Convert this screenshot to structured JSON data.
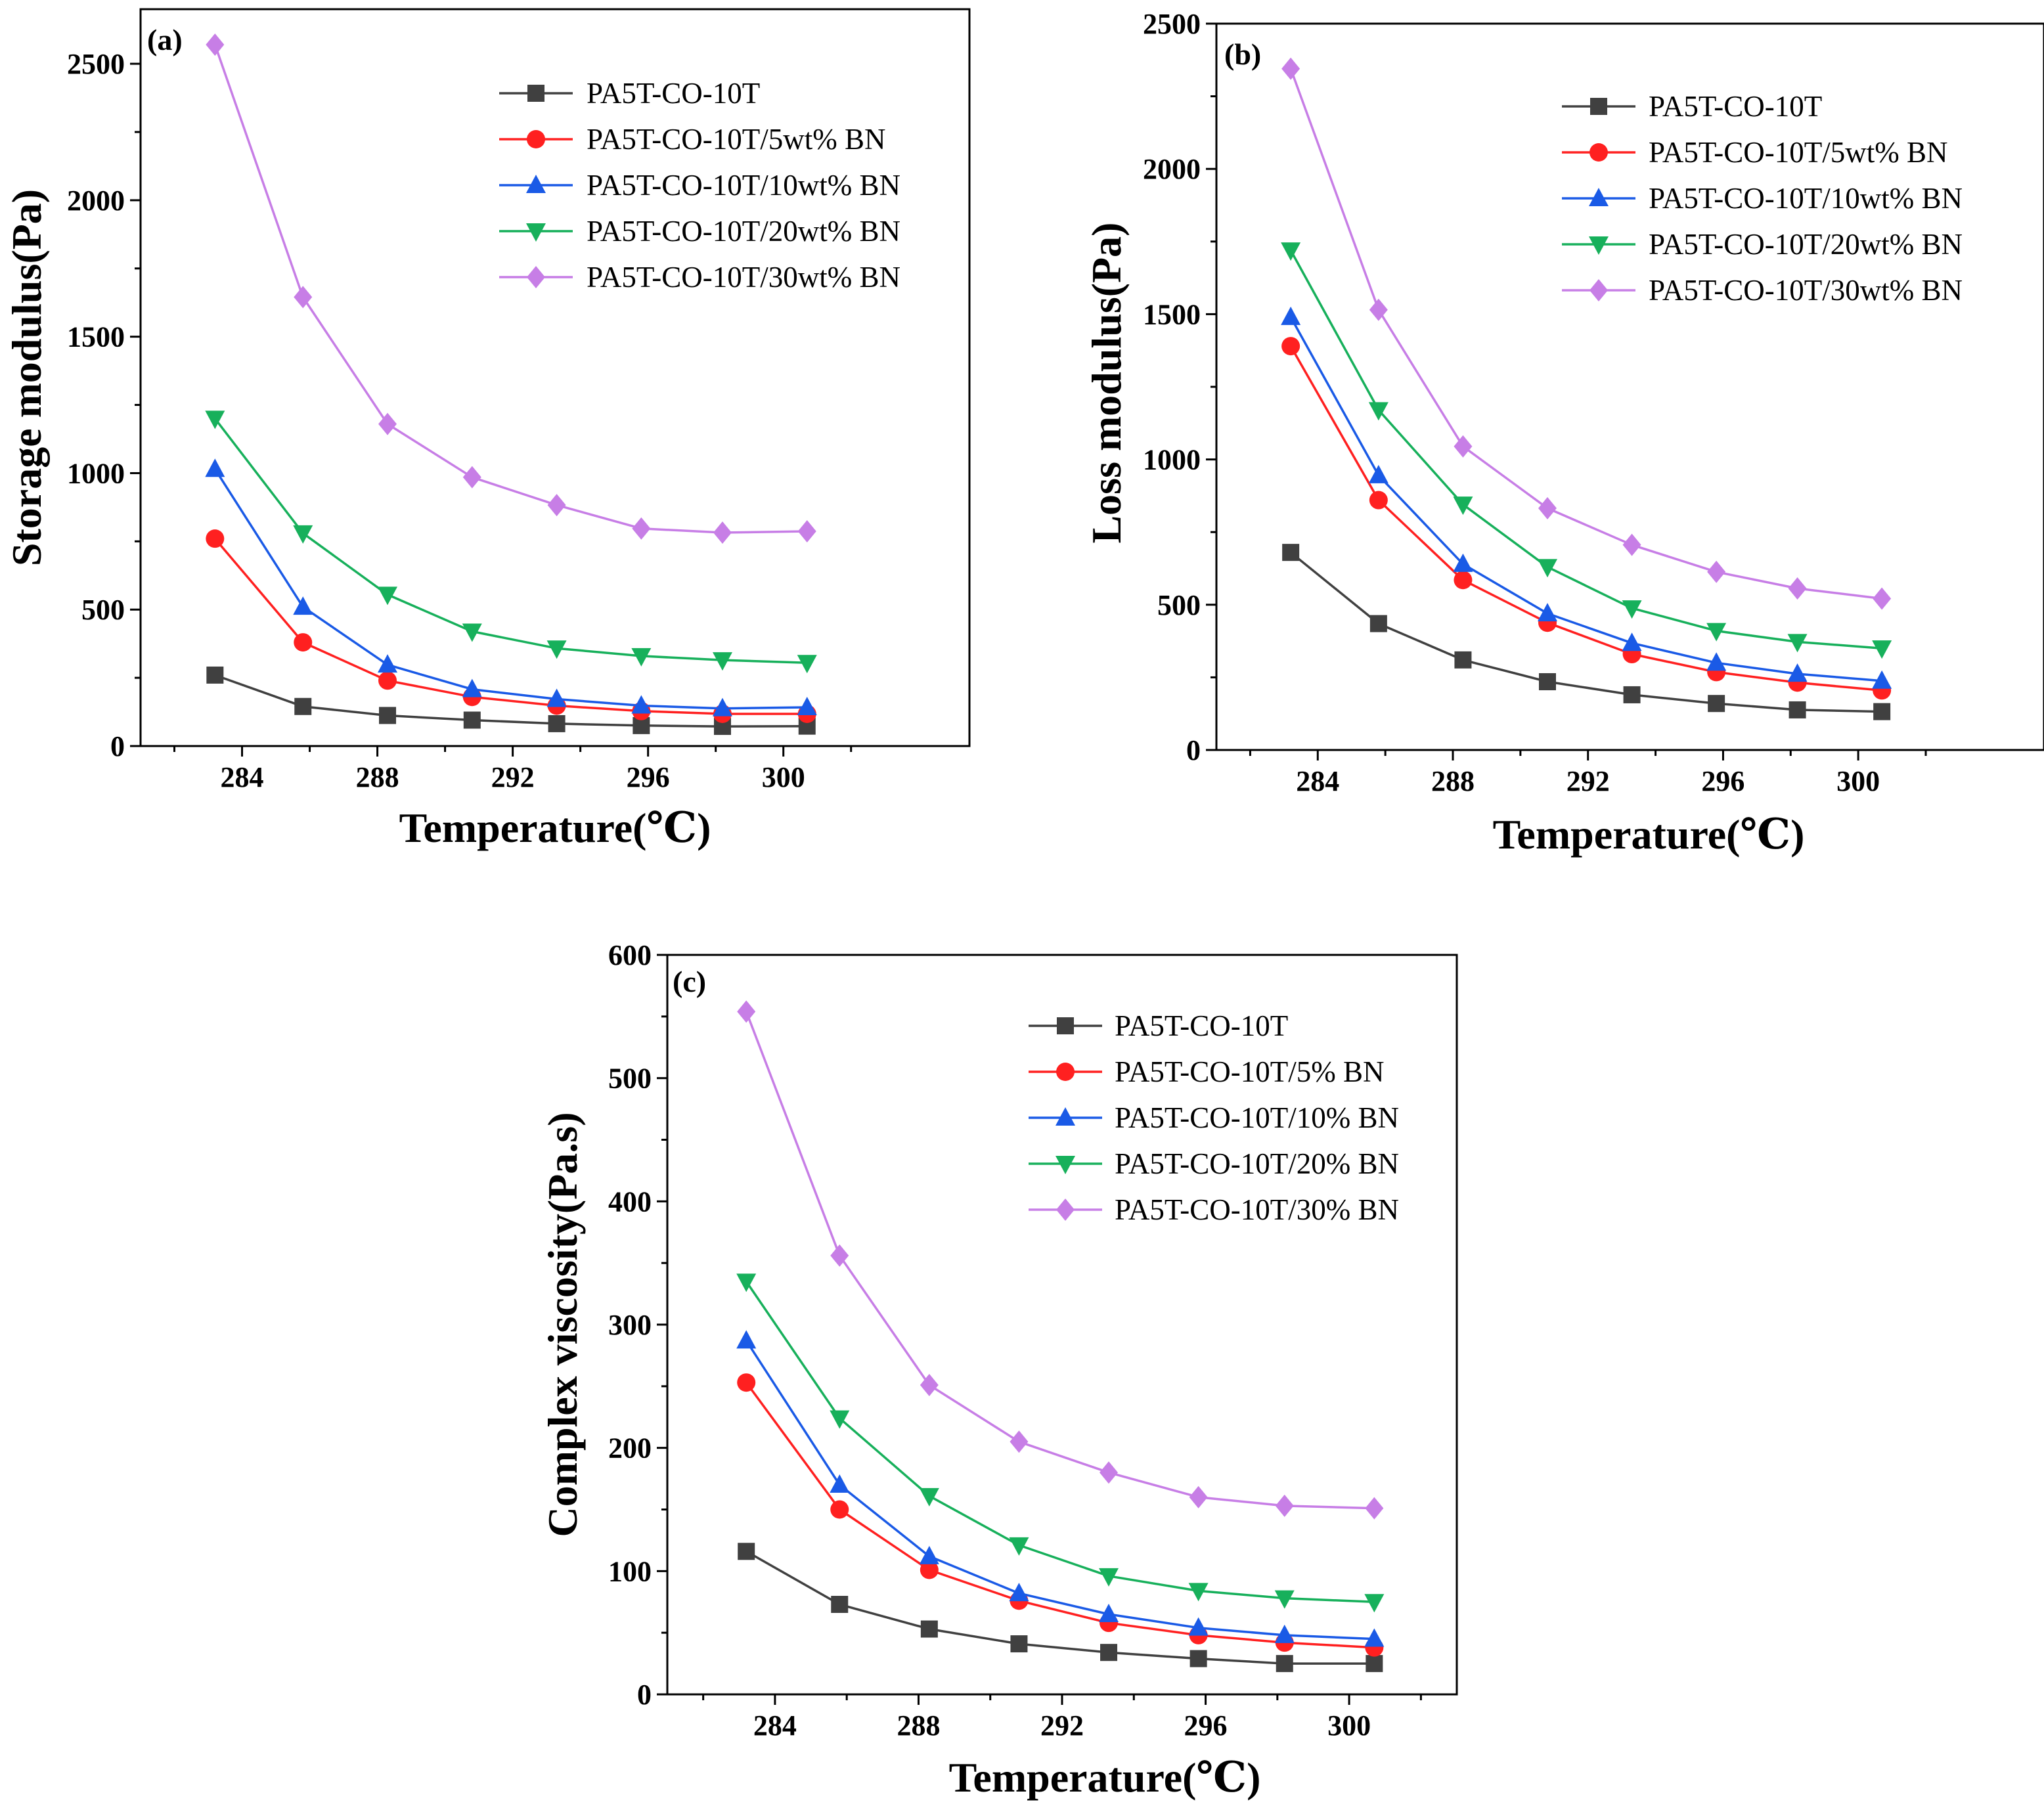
{
  "figure": {
    "colors": {
      "axis": "#000000",
      "series": [
        "#404040",
        "#ff2020",
        "#1a5ae6",
        "#17b05b",
        "#c77ee6"
      ]
    },
    "markers": [
      "square",
      "circle",
      "triangle-up",
      "triangle-down",
      "diamond"
    ]
  },
  "chart_data": [
    {
      "type": "line",
      "panel_label": "(a)",
      "title": "",
      "xlabel": "Temperature(℃)",
      "ylabel": "Storage modulus(Pa)",
      "xlim": [
        281,
        305.5
      ],
      "ylim": [
        0,
        2700
      ],
      "xticks": [
        284,
        288,
        292,
        296,
        300
      ],
      "yticks": [
        0,
        500,
        1000,
        1500,
        2000,
        2500
      ],
      "legend_position": "top-right",
      "x": [
        283.2,
        285.8,
        288.3,
        290.8,
        293.3,
        295.8,
        298.2,
        300.7
      ],
      "series": [
        {
          "name": "PA5T-CO-10T",
          "values": [
            260,
            145,
            112,
            95,
            82,
            75,
            72,
            73
          ]
        },
        {
          "name": "PA5T-CO-10T/5wt% BN",
          "values": [
            760,
            380,
            240,
            180,
            148,
            128,
            118,
            118
          ]
        },
        {
          "name": "PA5T-CO-10T/10wt% BN",
          "values": [
            1015,
            510,
            298,
            208,
            172,
            148,
            138,
            142
          ]
        },
        {
          "name": "PA5T-CO-10T/20wt% BN",
          "values": [
            1200,
            780,
            555,
            420,
            358,
            330,
            315,
            305
          ]
        },
        {
          "name": "PA5T-CO-10T/30wt% BN",
          "values": [
            2570,
            1645,
            1180,
            985,
            883,
            797,
            782,
            787
          ]
        }
      ]
    },
    {
      "type": "line",
      "panel_label": "(b)",
      "title": "",
      "xlabel": "Temperature(℃)",
      "ylabel": "Loss modulus(Pa)",
      "xlim": [
        281,
        305.5
      ],
      "ylim": [
        0,
        2500
      ],
      "xticks": [
        284,
        288,
        292,
        296,
        300
      ],
      "yticks": [
        0,
        500,
        1000,
        1500,
        2000,
        2500
      ],
      "legend_position": "top-right",
      "x": [
        283.2,
        285.8,
        288.3,
        290.8,
        293.3,
        295.8,
        298.2,
        300.7
      ],
      "series": [
        {
          "name": "PA5T-CO-10T",
          "values": [
            680,
            435,
            310,
            235,
            190,
            160,
            138,
            132
          ]
        },
        {
          "name": "PA5T-CO-10T/5wt% BN",
          "values": [
            1390,
            860,
            585,
            438,
            330,
            268,
            232,
            205
          ]
        },
        {
          "name": "PA5T-CO-10T/10wt% BN",
          "values": [
            1490,
            945,
            640,
            470,
            368,
            300,
            262,
            238
          ]
        },
        {
          "name": "PA5T-CO-10T/20wt% BN",
          "values": [
            1720,
            1170,
            845,
            630,
            488,
            410,
            372,
            350
          ]
        },
        {
          "name": "PA5T-CO-10T/30wt% BN",
          "values": [
            2345,
            1515,
            1045,
            832,
            706,
            613,
            556,
            521
          ]
        }
      ]
    },
    {
      "type": "line",
      "panel_label": "(c)",
      "title": "",
      "xlabel": "Temperature(℃)",
      "ylabel": "Complex viscosity(Pa.s)",
      "xlim": [
        281,
        303
      ],
      "ylim": [
        0,
        600
      ],
      "xticks": [
        284,
        288,
        292,
        296,
        300
      ],
      "yticks": [
        0,
        100,
        200,
        300,
        400,
        500,
        600
      ],
      "legend_position": "top-right",
      "x": [
        283.2,
        285.8,
        288.3,
        290.8,
        293.3,
        295.8,
        298.2,
        300.7
      ],
      "series": [
        {
          "name": "PA5T-CO-10T",
          "values": [
            116,
            73,
            53,
            41,
            34,
            29,
            25,
            25
          ]
        },
        {
          "name": "PA5T-CO-10T/5% BN",
          "values": [
            253,
            150,
            101,
            76,
            58,
            48,
            42,
            38
          ]
        },
        {
          "name": "PA5T-CO-10T/10% BN",
          "values": [
            287,
            170,
            112,
            82,
            65,
            54,
            48,
            45
          ]
        },
        {
          "name": "PA5T-CO-10T/20% BN",
          "values": [
            335,
            224,
            161,
            121,
            96,
            84,
            78,
            75
          ]
        },
        {
          "name": "PA5T-CO-10T/30% BN",
          "values": [
            554,
            356,
            251,
            205,
            180,
            160,
            153,
            151
          ]
        }
      ]
    }
  ]
}
